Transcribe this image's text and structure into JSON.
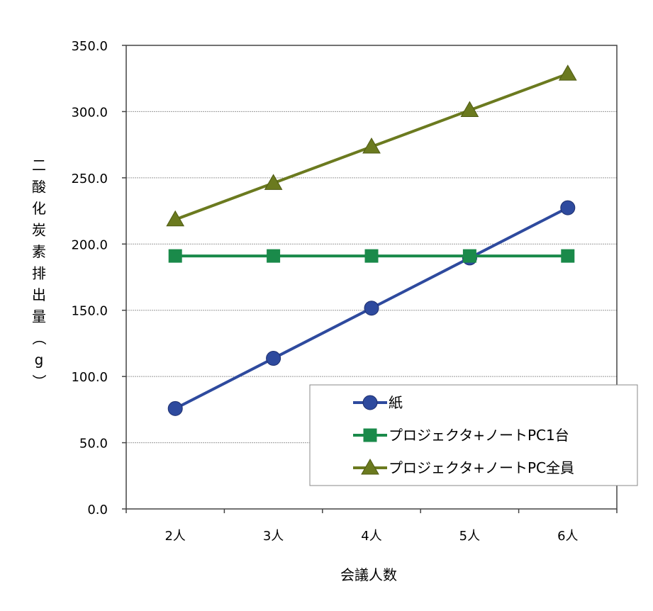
{
  "chart_data": {
    "type": "line",
    "categories": [
      "2人",
      "3人",
      "4人",
      "5人",
      "6人"
    ],
    "series": [
      {
        "name": "紙",
        "values": [
          75.8,
          113.7,
          151.6,
          189.5,
          227.4
        ],
        "color": "#2e4a9e",
        "marker": "circle"
      },
      {
        "name": "プロジェクタ+ノートPC1台",
        "values": [
          191.0,
          191.0,
          191.0,
          191.0,
          191.0
        ],
        "color": "#1a8a4a",
        "marker": "square"
      },
      {
        "name": "プロジェクタ+ノートPC全員",
        "values": [
          218.5,
          246.0,
          273.5,
          301.0,
          328.5
        ],
        "color": "#6b7a1f",
        "marker": "triangle"
      }
    ],
    "xlabel": "会議人数",
    "ylabel": "二酸化炭素排出量（g）",
    "ylim": [
      0,
      350
    ],
    "yticks": [
      "0.0",
      "50.0",
      "100.0",
      "150.0",
      "200.0",
      "250.0",
      "300.0",
      "350.0"
    ],
    "grid": true,
    "legend_position": "bottom-right"
  }
}
